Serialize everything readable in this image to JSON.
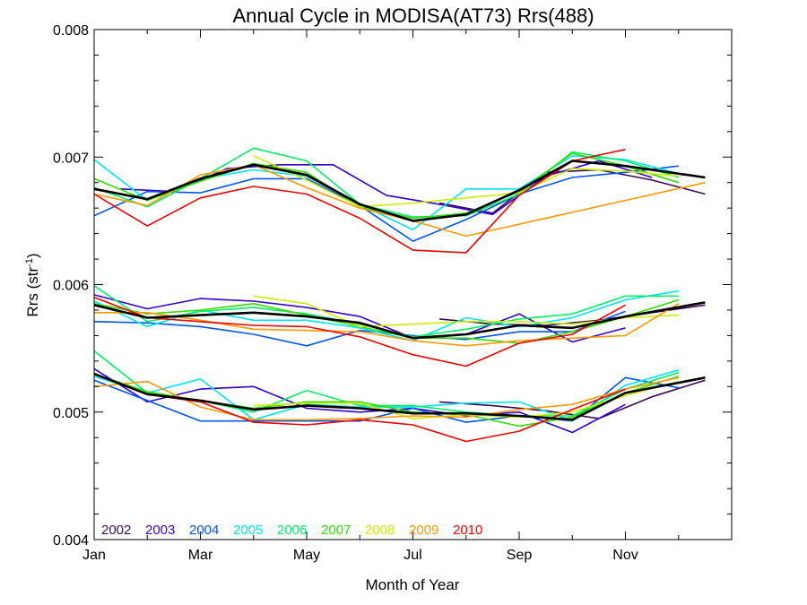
{
  "chart_data": {
    "type": "line",
    "title": "Annual Cycle in MODISA(AT73) Rrs(488)",
    "xlabel": "Month of Year",
    "ylabel_main": "Rrs (str",
    "ylabel_exp": "-1",
    "ylabel_close": ")",
    "xlim": [
      1,
      13
    ],
    "ylim": [
      0.004,
      0.008
    ],
    "x_ticks": [
      {
        "value": 1,
        "label": "Jan"
      },
      {
        "value": 3,
        "label": "Mar"
      },
      {
        "value": 5,
        "label": "May"
      },
      {
        "value": 7,
        "label": "Jul"
      },
      {
        "value": 9,
        "label": "Sep"
      },
      {
        "value": 11,
        "label": "Nov"
      }
    ],
    "y_ticks": [
      {
        "value": 0.004,
        "label": "0.004"
      },
      {
        "value": 0.005,
        "label": "0.005"
      },
      {
        "value": 0.006,
        "label": "0.006"
      },
      {
        "value": 0.007,
        "label": "0.007"
      },
      {
        "value": 0.008,
        "label": "0.008"
      }
    ],
    "grid": false,
    "legend_position": "bottom-left",
    "groups": [
      {
        "series": [
          {
            "name": "2002",
            "color": "#3a0a5a",
            "x": [
              7.5,
              8.5,
              9.5,
              10.5,
              11.5,
              12.5
            ],
            "y": [
              0.00664,
              0.00656,
              0.00688,
              0.0069,
              0.00682,
              0.00671
            ]
          },
          {
            "name": "2003",
            "color": "#3300cc",
            "x": [
              1.5,
              2.5,
              3.5,
              4.5,
              5.5,
              6.5,
              7.5,
              8.5,
              9.5,
              10.5,
              11.5
            ],
            "y": [
              0.00675,
              0.00673,
              0.00691,
              0.00694,
              0.00694,
              0.0067,
              0.00663,
              0.00655,
              0.00685,
              0.00697,
              0.00684
            ]
          },
          {
            "name": "2004",
            "color": "#0055ee",
            "x": [
              1,
              2,
              3,
              4,
              5,
              6,
              7,
              8,
              9,
              10,
              11,
              12
            ],
            "y": [
              0.00654,
              0.00673,
              0.00672,
              0.00683,
              0.00683,
              0.00662,
              0.00634,
              0.00651,
              0.00671,
              0.00684,
              0.00688,
              0.00693
            ]
          },
          {
            "name": "2005",
            "color": "#00e5ee",
            "x": [
              1,
              2,
              3,
              4,
              5,
              6,
              7,
              8,
              9,
              10,
              11,
              12
            ],
            "y": [
              0.00698,
              0.00666,
              0.00683,
              0.0069,
              0.00685,
              0.00663,
              0.00643,
              0.00675,
              0.00675,
              0.00701,
              0.00698,
              0.00687
            ]
          },
          {
            "name": "2006",
            "color": "#00ee66",
            "x": [
              1,
              2,
              3,
              4,
              5,
              6,
              7,
              8,
              9,
              10,
              11,
              12
            ],
            "y": [
              0.00676,
              0.00661,
              0.00683,
              0.00707,
              0.00697,
              0.00663,
              0.00653,
              0.00654,
              0.00671,
              0.00704,
              0.00697,
              0.00684
            ]
          },
          {
            "name": "2007",
            "color": "#33dd00",
            "x": [
              1,
              2,
              3,
              4,
              5,
              6,
              7,
              8,
              9,
              10,
              11,
              12
            ],
            "y": [
              0.00683,
              0.00666,
              0.00681,
              0.00695,
              0.00688,
              0.00661,
              0.00652,
              0.00656,
              0.00673,
              0.00703,
              0.00693,
              0.0068
            ]
          },
          {
            "name": "2008",
            "color": "#ccee00",
            "x": [
              4,
              5,
              6,
              7,
              8,
              9,
              10,
              11,
              12
            ],
            "y": [
              0.00701,
              0.00682,
              0.00661,
              0.00664,
              0.00668,
              0.00672,
              0.00691,
              0.00689,
              0.00685
            ]
          },
          {
            "name": "2009",
            "color": "#ff9900",
            "x": [
              1,
              2,
              3,
              4,
              5,
              6,
              7,
              8,
              12.5
            ],
            "y": [
              0.00671,
              0.00662,
              0.00686,
              0.00694,
              0.00676,
              0.0066,
              0.0065,
              0.00638,
              0.0068
            ]
          },
          {
            "name": "2010",
            "color": "#ee0000",
            "x": [
              1,
              2,
              3,
              4,
              5,
              6,
              7,
              8,
              9,
              10,
              11
            ],
            "y": [
              0.00671,
              0.00646,
              0.00668,
              0.00677,
              0.00671,
              0.00652,
              0.00627,
              0.00625,
              0.0067,
              0.00697,
              0.00706
            ]
          },
          {
            "name": "",
            "color": "#000000",
            "x": [
              1,
              2,
              3,
              4,
              5,
              6,
              7,
              8,
              9,
              10,
              11,
              12.5
            ],
            "y": [
              0.00675,
              0.00667,
              0.00683,
              0.00694,
              0.00686,
              0.00663,
              0.0065,
              0.00655,
              0.00674,
              0.00697,
              0.00693,
              0.00684
            ]
          }
        ]
      },
      {
        "series": [
          {
            "name": "2002",
            "color": "#3a0a5a",
            "x": [
              7.5,
              8.5,
              9.5,
              10.5,
              11.5,
              12.5
            ],
            "y": [
              0.00573,
              0.00569,
              0.00568,
              0.00572,
              0.00578,
              0.00584
            ]
          },
          {
            "name": "2003",
            "color": "#3300cc",
            "x": [
              1,
              2,
              3,
              4,
              5,
              6,
              7,
              8,
              9,
              10,
              11
            ],
            "y": [
              0.00592,
              0.00581,
              0.00589,
              0.00587,
              0.00582,
              0.00575,
              0.00558,
              0.00561,
              0.00577,
              0.00555,
              0.00566
            ]
          },
          {
            "name": "2004",
            "color": "#0055ee",
            "x": [
              1,
              2,
              3,
              4,
              5,
              6,
              7,
              8,
              9,
              10,
              11
            ],
            "y": [
              0.00571,
              0.0057,
              0.00567,
              0.00561,
              0.00552,
              0.00564,
              0.0056,
              0.00557,
              0.00563,
              0.00563,
              0.00579
            ]
          },
          {
            "name": "2005",
            "color": "#00e5ee",
            "x": [
              1,
              2,
              3,
              4,
              5,
              6,
              7,
              8,
              9,
              10,
              11,
              12
            ],
            "y": [
              0.00587,
              0.00567,
              0.0058,
              0.00572,
              0.00572,
              0.00566,
              0.00556,
              0.00574,
              0.00567,
              0.00574,
              0.00588,
              0.00595
            ]
          },
          {
            "name": "2006",
            "color": "#00ee66",
            "x": [
              1,
              2,
              3,
              4,
              5,
              6,
              7,
              8,
              9,
              10,
              11,
              12
            ],
            "y": [
              0.00599,
              0.00571,
              0.00579,
              0.00582,
              0.00577,
              0.00569,
              0.00559,
              0.00565,
              0.00573,
              0.00577,
              0.00591,
              0.00591
            ]
          },
          {
            "name": "2007",
            "color": "#33dd00",
            "x": [
              1,
              2,
              3,
              4,
              5,
              6,
              7,
              8,
              9,
              10,
              11,
              12
            ],
            "y": [
              0.00585,
              0.00577,
              0.0058,
              0.00585,
              0.00576,
              0.00567,
              0.00558,
              0.00558,
              0.00554,
              0.00563,
              0.00575,
              0.00588
            ]
          },
          {
            "name": "2008",
            "color": "#ccee00",
            "x": [
              4,
              5,
              6,
              7,
              8,
              9,
              10,
              11,
              12
            ],
            "y": [
              0.00591,
              0.00585,
              0.00567,
              0.00569,
              0.00571,
              0.00571,
              0.00569,
              0.00574,
              0.00576
            ]
          },
          {
            "name": "2009",
            "color": "#ff9900",
            "x": [
              1,
              2,
              3,
              4,
              5,
              6,
              7,
              8,
              9,
              10,
              11,
              12
            ],
            "y": [
              0.00578,
              0.00578,
              0.00572,
              0.00565,
              0.00564,
              0.00563,
              0.00556,
              0.00552,
              0.00556,
              0.00558,
              0.0056,
              0.00585
            ]
          },
          {
            "name": "2010",
            "color": "#ee0000",
            "x": [
              1,
              2,
              3,
              4,
              5,
              6,
              7,
              8,
              9,
              10,
              11
            ],
            "y": [
              0.0059,
              0.00574,
              0.00571,
              0.00568,
              0.00567,
              0.00559,
              0.00545,
              0.00536,
              0.00554,
              0.00561,
              0.00584
            ]
          },
          {
            "name": "",
            "color": "#000000",
            "x": [
              1,
              2,
              3,
              4,
              5,
              6,
              7,
              8,
              9,
              10,
              11,
              12.5
            ],
            "y": [
              0.00584,
              0.00574,
              0.00576,
              0.00578,
              0.00575,
              0.0057,
              0.00558,
              0.00561,
              0.00568,
              0.00566,
              0.00575,
              0.00586
            ]
          }
        ]
      },
      {
        "series": [
          {
            "name": "2002",
            "color": "#3a0a5a",
            "x": [
              7.5,
              8.5,
              9.5,
              10.5,
              11.5,
              12.5
            ],
            "y": [
              0.00508,
              0.00505,
              0.00501,
              0.00495,
              0.00512,
              0.00525
            ]
          },
          {
            "name": "2003",
            "color": "#3300cc",
            "x": [
              1,
              2,
              3,
              4,
              5,
              6,
              7,
              8,
              9,
              10,
              11
            ],
            "y": [
              0.00534,
              0.00508,
              0.00518,
              0.0052,
              0.00503,
              0.005,
              0.00503,
              0.00497,
              0.005,
              0.00484,
              0.00506
            ]
          },
          {
            "name": "2004",
            "color": "#0055ee",
            "x": [
              1,
              2,
              3,
              4,
              5,
              6,
              7,
              8,
              9,
              10,
              11,
              12
            ],
            "y": [
              0.00525,
              0.00509,
              0.00493,
              0.00493,
              0.00493,
              0.00493,
              0.00503,
              0.00492,
              0.00497,
              0.00493,
              0.00527,
              0.00519
            ]
          },
          {
            "name": "2005",
            "color": "#00e5ee",
            "x": [
              1,
              2,
              3,
              4,
              5,
              6,
              7,
              8,
              9,
              10,
              11,
              12
            ],
            "y": [
              0.00528,
              0.00515,
              0.00526,
              0.00494,
              0.00506,
              0.00504,
              0.00504,
              0.00507,
              0.00508,
              0.00493,
              0.00521,
              0.00533
            ]
          },
          {
            "name": "2006",
            "color": "#00ee66",
            "x": [
              1,
              2,
              3,
              4,
              5,
              6,
              7,
              8,
              9,
              10,
              11,
              12
            ],
            "y": [
              0.00548,
              0.00515,
              0.00509,
              0.005,
              0.00517,
              0.00505,
              0.00505,
              0.005,
              0.00497,
              0.00497,
              0.00518,
              0.00531
            ]
          },
          {
            "name": "2007",
            "color": "#33dd00",
            "x": [
              1,
              2,
              3,
              4,
              5,
              6,
              7,
              8,
              9,
              10,
              11,
              12
            ],
            "y": [
              0.0053,
              0.00516,
              0.00509,
              0.00503,
              0.00508,
              0.00508,
              0.005,
              0.00498,
              0.00489,
              0.00496,
              0.00515,
              0.00528
            ]
          },
          {
            "name": "2008",
            "color": "#ccee00",
            "x": [
              4,
              5,
              6,
              7,
              8,
              9,
              10,
              11,
              12
            ],
            "y": [
              0.00505,
              0.00507,
              0.00507,
              0.00495,
              0.00498,
              0.00496,
              0.005,
              0.00513,
              0.00524
            ]
          },
          {
            "name": "2009",
            "color": "#ff9900",
            "x": [
              1,
              2,
              3,
              4,
              5,
              6,
              7,
              8,
              9,
              10,
              11,
              12
            ],
            "y": [
              0.0052,
              0.00524,
              0.00504,
              0.00494,
              0.00494,
              0.00495,
              0.00497,
              0.00496,
              0.00502,
              0.00506,
              0.00518,
              0.00527
            ]
          },
          {
            "name": "2010",
            "color": "#ee0000",
            "x": [
              1,
              2,
              3,
              4,
              5,
              6,
              7,
              8,
              9,
              10,
              11
            ],
            "y": [
              0.0053,
              0.00514,
              0.00508,
              0.00492,
              0.0049,
              0.00494,
              0.0049,
              0.00477,
              0.00485,
              0.00502,
              0.00518
            ]
          },
          {
            "name": "",
            "color": "#000000",
            "x": [
              1,
              2,
              3,
              4,
              5,
              6,
              7,
              8,
              9,
              10,
              11,
              12.5
            ],
            "y": [
              0.0053,
              0.00514,
              0.00509,
              0.00502,
              0.00505,
              0.00503,
              0.00499,
              0.00499,
              0.00497,
              0.00494,
              0.00515,
              0.00527
            ]
          }
        ]
      }
    ]
  }
}
